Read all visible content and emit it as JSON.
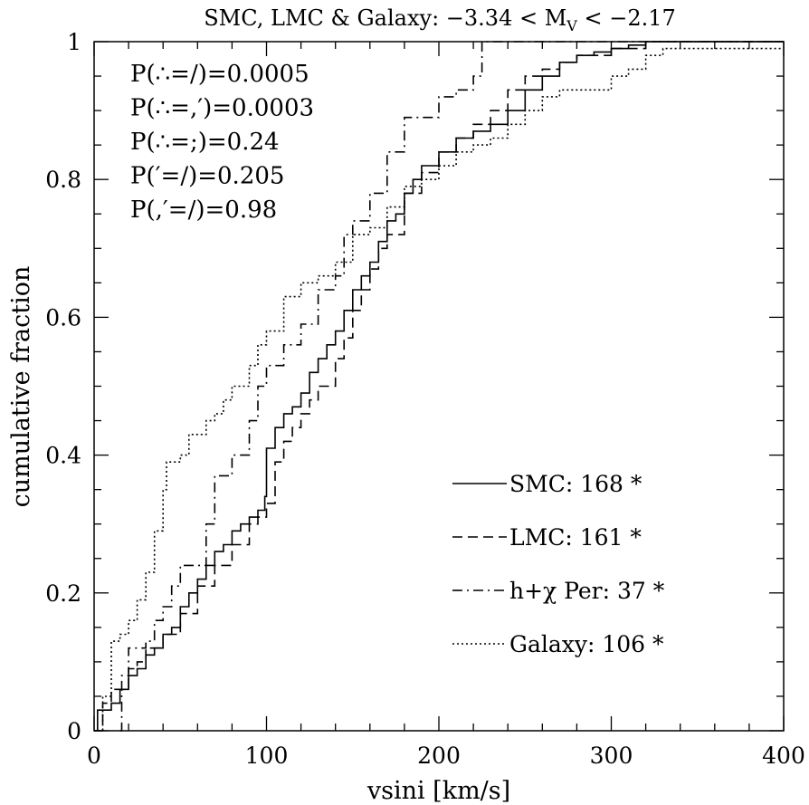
{
  "chart_data": {
    "type": "line",
    "title": "SMC, LMC & Galaxy: −3.34 < M",
    "title_sub": "V",
    "title_tail": " < −2.17",
    "xlabel": "vsini [km/s]",
    "ylabel": "cumulative fraction",
    "xlim": [
      0,
      400
    ],
    "ylim": [
      0,
      1
    ],
    "x_ticks": [
      "0",
      "100",
      "200",
      "300",
      "400"
    ],
    "y_ticks": [
      "0",
      "0.2",
      "0.4",
      "0.6",
      "0.8",
      "1"
    ],
    "grid": false,
    "legend_position": "bottom-right",
    "annotations": [
      "P(∴=/)=0.0005",
      "P(∴=,′)=0.0003",
      "P(∴=;)=0.24",
      "P(′=/)=0.205",
      "P(,′=/)=0.98"
    ],
    "series": [
      {
        "name": "SMC: 168 *",
        "dash": "solid",
        "points": [
          [
            0,
            0
          ],
          [
            2,
            0.03
          ],
          [
            10,
            0.04
          ],
          [
            15,
            0.06
          ],
          [
            20,
            0.08
          ],
          [
            25,
            0.09
          ],
          [
            30,
            0.11
          ],
          [
            35,
            0.12
          ],
          [
            40,
            0.14
          ],
          [
            45,
            0.15
          ],
          [
            50,
            0.18
          ],
          [
            55,
            0.2
          ],
          [
            60,
            0.22
          ],
          [
            65,
            0.24
          ],
          [
            70,
            0.26
          ],
          [
            75,
            0.27
          ],
          [
            80,
            0.29
          ],
          [
            85,
            0.3
          ],
          [
            90,
            0.31
          ],
          [
            95,
            0.32
          ],
          [
            99,
            0.34
          ],
          [
            100,
            0.41
          ],
          [
            105,
            0.44
          ],
          [
            110,
            0.46
          ],
          [
            115,
            0.47
          ],
          [
            120,
            0.49
          ],
          [
            125,
            0.52
          ],
          [
            130,
            0.54
          ],
          [
            135,
            0.56
          ],
          [
            140,
            0.58
          ],
          [
            145,
            0.61
          ],
          [
            150,
            0.64
          ],
          [
            155,
            0.66
          ],
          [
            160,
            0.68
          ],
          [
            165,
            0.71
          ],
          [
            170,
            0.74
          ],
          [
            175,
            0.75
          ],
          [
            180,
            0.78
          ],
          [
            185,
            0.8
          ],
          [
            190,
            0.82
          ],
          [
            200,
            0.84
          ],
          [
            210,
            0.86
          ],
          [
            220,
            0.87
          ],
          [
            230,
            0.88
          ],
          [
            240,
            0.9
          ],
          [
            250,
            0.93
          ],
          [
            260,
            0.95
          ],
          [
            270,
            0.97
          ],
          [
            280,
            0.98
          ],
          [
            290,
            0.985
          ],
          [
            300,
            0.99
          ],
          [
            310,
            0.995
          ],
          [
            320,
            1.0
          ],
          [
            400,
            1.0
          ]
        ]
      },
      {
        "name": "LMC: 161 *",
        "dash": "dashed",
        "points": [
          [
            0,
            0
          ],
          [
            5,
            0.04
          ],
          [
            10,
            0.06
          ],
          [
            20,
            0.09
          ],
          [
            25,
            0.1
          ],
          [
            30,
            0.12
          ],
          [
            40,
            0.14
          ],
          [
            50,
            0.17
          ],
          [
            60,
            0.21
          ],
          [
            70,
            0.24
          ],
          [
            80,
            0.27
          ],
          [
            90,
            0.3
          ],
          [
            95,
            0.31
          ],
          [
            100,
            0.33
          ],
          [
            105,
            0.39
          ],
          [
            110,
            0.42
          ],
          [
            115,
            0.44
          ],
          [
            120,
            0.46
          ],
          [
            125,
            0.48
          ],
          [
            130,
            0.5
          ],
          [
            140,
            0.54
          ],
          [
            145,
            0.57
          ],
          [
            150,
            0.61
          ],
          [
            155,
            0.64
          ],
          [
            160,
            0.67
          ],
          [
            165,
            0.7
          ],
          [
            170,
            0.72
          ],
          [
            180,
            0.78
          ],
          [
            190,
            0.81
          ],
          [
            200,
            0.84
          ],
          [
            210,
            0.86
          ],
          [
            220,
            0.88
          ],
          [
            230,
            0.9
          ],
          [
            240,
            0.93
          ],
          [
            250,
            0.95
          ],
          [
            260,
            0.96
          ],
          [
            270,
            0.97
          ],
          [
            280,
            0.98
          ],
          [
            300,
            0.99
          ],
          [
            320,
            1.0
          ],
          [
            400,
            1.0
          ]
        ]
      },
      {
        "name": "h+χ Per: 37 *",
        "dash": "dashdot",
        "points": [
          [
            15,
            0
          ],
          [
            16,
            0.08
          ],
          [
            20,
            0.12
          ],
          [
            30,
            0.13
          ],
          [
            35,
            0.16
          ],
          [
            40,
            0.18
          ],
          [
            45,
            0.21
          ],
          [
            50,
            0.24
          ],
          [
            60,
            0.24
          ],
          [
            65,
            0.3
          ],
          [
            70,
            0.37
          ],
          [
            80,
            0.4
          ],
          [
            90,
            0.45
          ],
          [
            95,
            0.5
          ],
          [
            100,
            0.53
          ],
          [
            110,
            0.56
          ],
          [
            120,
            0.59
          ],
          [
            130,
            0.64
          ],
          [
            140,
            0.66
          ],
          [
            145,
            0.72
          ],
          [
            150,
            0.74
          ],
          [
            160,
            0.78
          ],
          [
            170,
            0.84
          ],
          [
            175,
            0.84
          ],
          [
            180,
            0.89
          ],
          [
            195,
            0.89
          ],
          [
            200,
            0.92
          ],
          [
            210,
            0.93
          ],
          [
            220,
            0.95
          ],
          [
            225,
            1.0
          ],
          [
            400,
            1.0
          ]
        ]
      },
      {
        "name": "Galaxy: 106 *",
        "dash": "dotted",
        "points": [
          [
            0,
            0
          ],
          [
            5,
            0.05
          ],
          [
            10,
            0.13
          ],
          [
            15,
            0.14
          ],
          [
            20,
            0.16
          ],
          [
            25,
            0.19
          ],
          [
            30,
            0.23
          ],
          [
            35,
            0.29
          ],
          [
            40,
            0.35
          ],
          [
            42,
            0.39
          ],
          [
            50,
            0.4
          ],
          [
            55,
            0.43
          ],
          [
            60,
            0.43
          ],
          [
            65,
            0.45
          ],
          [
            70,
            0.46
          ],
          [
            75,
            0.48
          ],
          [
            80,
            0.5
          ],
          [
            90,
            0.53
          ],
          [
            95,
            0.56
          ],
          [
            100,
            0.58
          ],
          [
            110,
            0.63
          ],
          [
            120,
            0.65
          ],
          [
            130,
            0.66
          ],
          [
            140,
            0.68
          ],
          [
            150,
            0.72
          ],
          [
            160,
            0.73
          ],
          [
            170,
            0.76
          ],
          [
            180,
            0.79
          ],
          [
            190,
            0.8
          ],
          [
            200,
            0.82
          ],
          [
            210,
            0.84
          ],
          [
            220,
            0.85
          ],
          [
            230,
            0.86
          ],
          [
            240,
            0.88
          ],
          [
            250,
            0.9
          ],
          [
            260,
            0.92
          ],
          [
            270,
            0.93
          ],
          [
            290,
            0.93
          ],
          [
            300,
            0.95
          ],
          [
            310,
            0.96
          ],
          [
            320,
            0.98
          ],
          [
            330,
            0.99
          ],
          [
            400,
            0.99
          ]
        ]
      }
    ]
  }
}
